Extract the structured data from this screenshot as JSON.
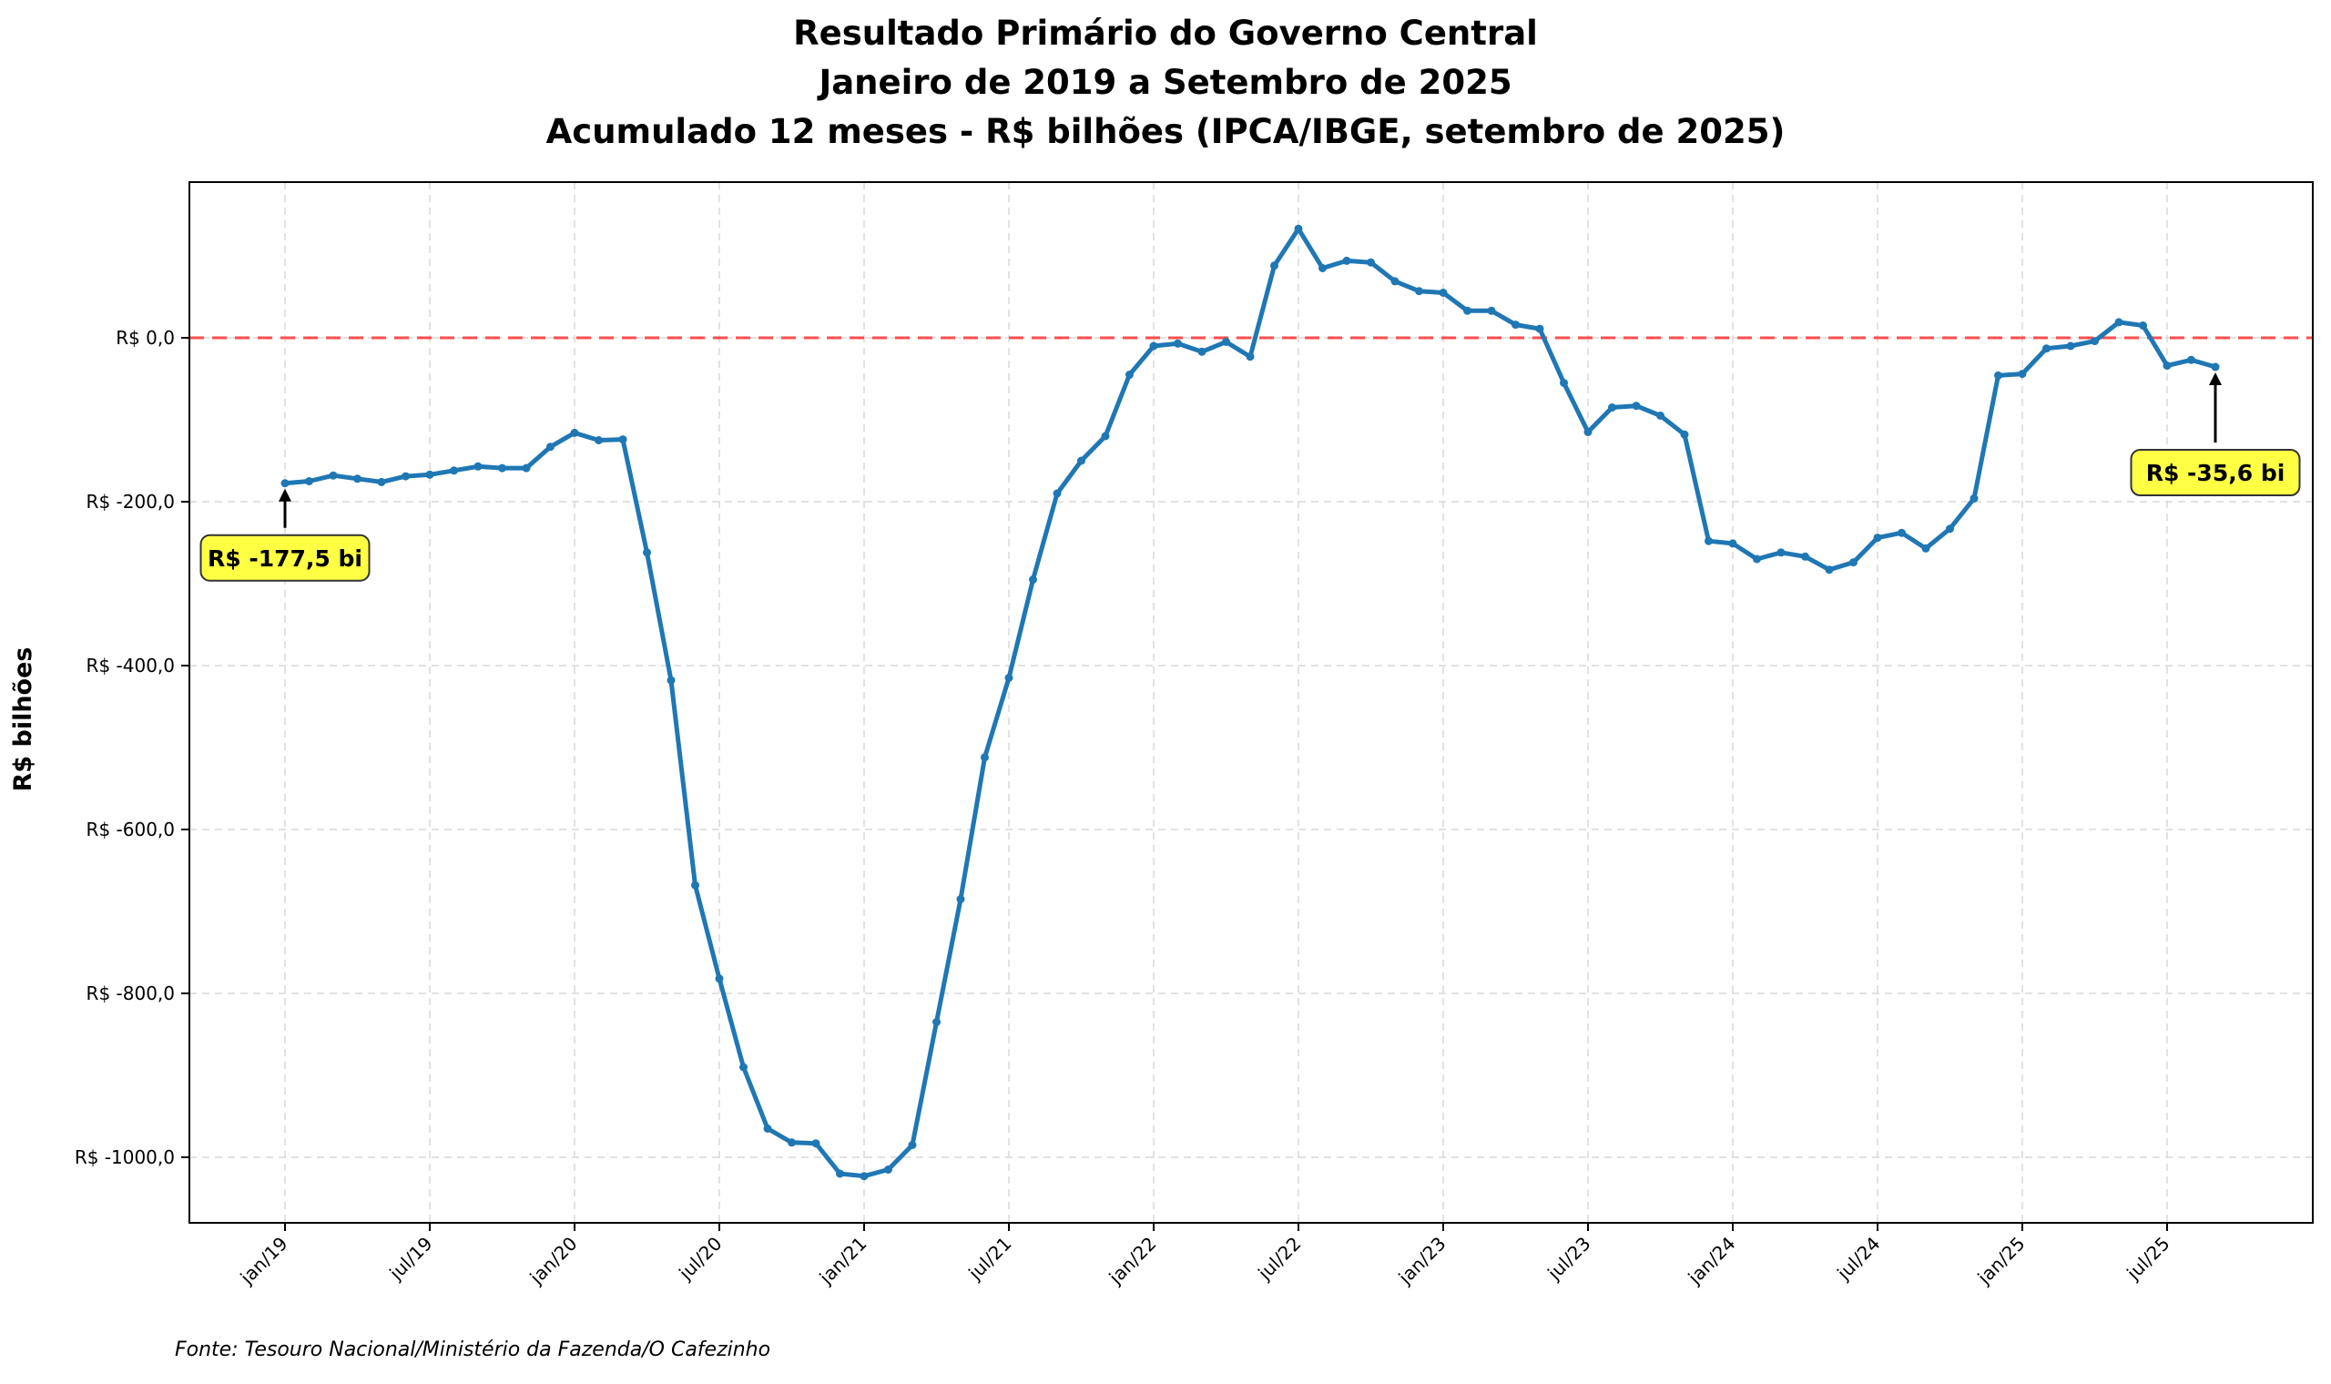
{
  "title_lines": [
    "Resultado Primário do Governo Central",
    "Janeiro de 2019 a Setembro de 2025",
    "Acumulado 12 meses - R$ bilhões (IPCA/IBGE, setembro de 2025)"
  ],
  "source": "Fonte: Tesouro Nacional/Ministério da Fazenda/O Cafezinho",
  "colors": {
    "line": "#1f77b4",
    "zero_line": "#ff4d4d",
    "callout_bg": "#ffff44"
  },
  "chart_data": {
    "type": "line",
    "title": "Resultado Primário do Governo Central\nJaneiro de 2019 a Setembro de 2025\nAcumulado 12 meses - R$ bilhões (IPCA/IBGE, setembro de 2025)",
    "xlabel": "",
    "ylabel": "R$ bilhões",
    "ylim": [
      -1080,
      190
    ],
    "grid": true,
    "x_tick_labels": [
      "jan/19",
      "jul/19",
      "jan/20",
      "jul/20",
      "jan/21",
      "jul/21",
      "jan/22",
      "jul/22",
      "jan/23",
      "jul/23",
      "jan/24",
      "jul/24",
      "jan/25",
      "jul/25"
    ],
    "y_ticks": [
      0,
      -200,
      -400,
      -600,
      -800,
      -1000
    ],
    "y_tick_labels": [
      "R$ 0,0",
      "R$ -200,0",
      "R$ -400,0",
      "R$ -600,0",
      "R$ -800,0",
      "R$ -1000,0"
    ],
    "reference_line": {
      "y": 0,
      "style": "dashed"
    },
    "x_start": "jan/19",
    "x_end": "set/25",
    "series": [
      {
        "values": [
          -177.5,
          -175,
          -168,
          -172,
          -176,
          -169,
          -167,
          -162,
          -157,
          -159,
          -159,
          -133,
          -116,
          -125,
          -124,
          -262,
          -418,
          -668,
          -782,
          -890,
          -965,
          -982,
          -983,
          -1020,
          -1023,
          -1015,
          -985,
          -835,
          -685,
          -512,
          -415,
          -295,
          -190,
          -150,
          -120,
          -45,
          -10,
          -7,
          -17,
          -5,
          -23,
          88,
          133,
          85,
          94,
          92,
          69,
          57,
          55,
          33,
          33,
          16,
          11,
          -55,
          -115,
          -85,
          -83,
          -95,
          -118,
          -248,
          -251,
          -270,
          -262,
          -267,
          -283,
          -274,
          -244,
          -238,
          -257,
          -233,
          -196,
          -46,
          -44,
          -13,
          -10,
          -4,
          19,
          15,
          -34,
          -27,
          -35.6
        ]
      }
    ],
    "annotations": [
      {
        "label": "R$ -177,5 bi",
        "x": "jan/19",
        "y": -177.5
      },
      {
        "label": "R$ -35,6 bi",
        "x": "set/25",
        "y": -35.6
      }
    ]
  }
}
